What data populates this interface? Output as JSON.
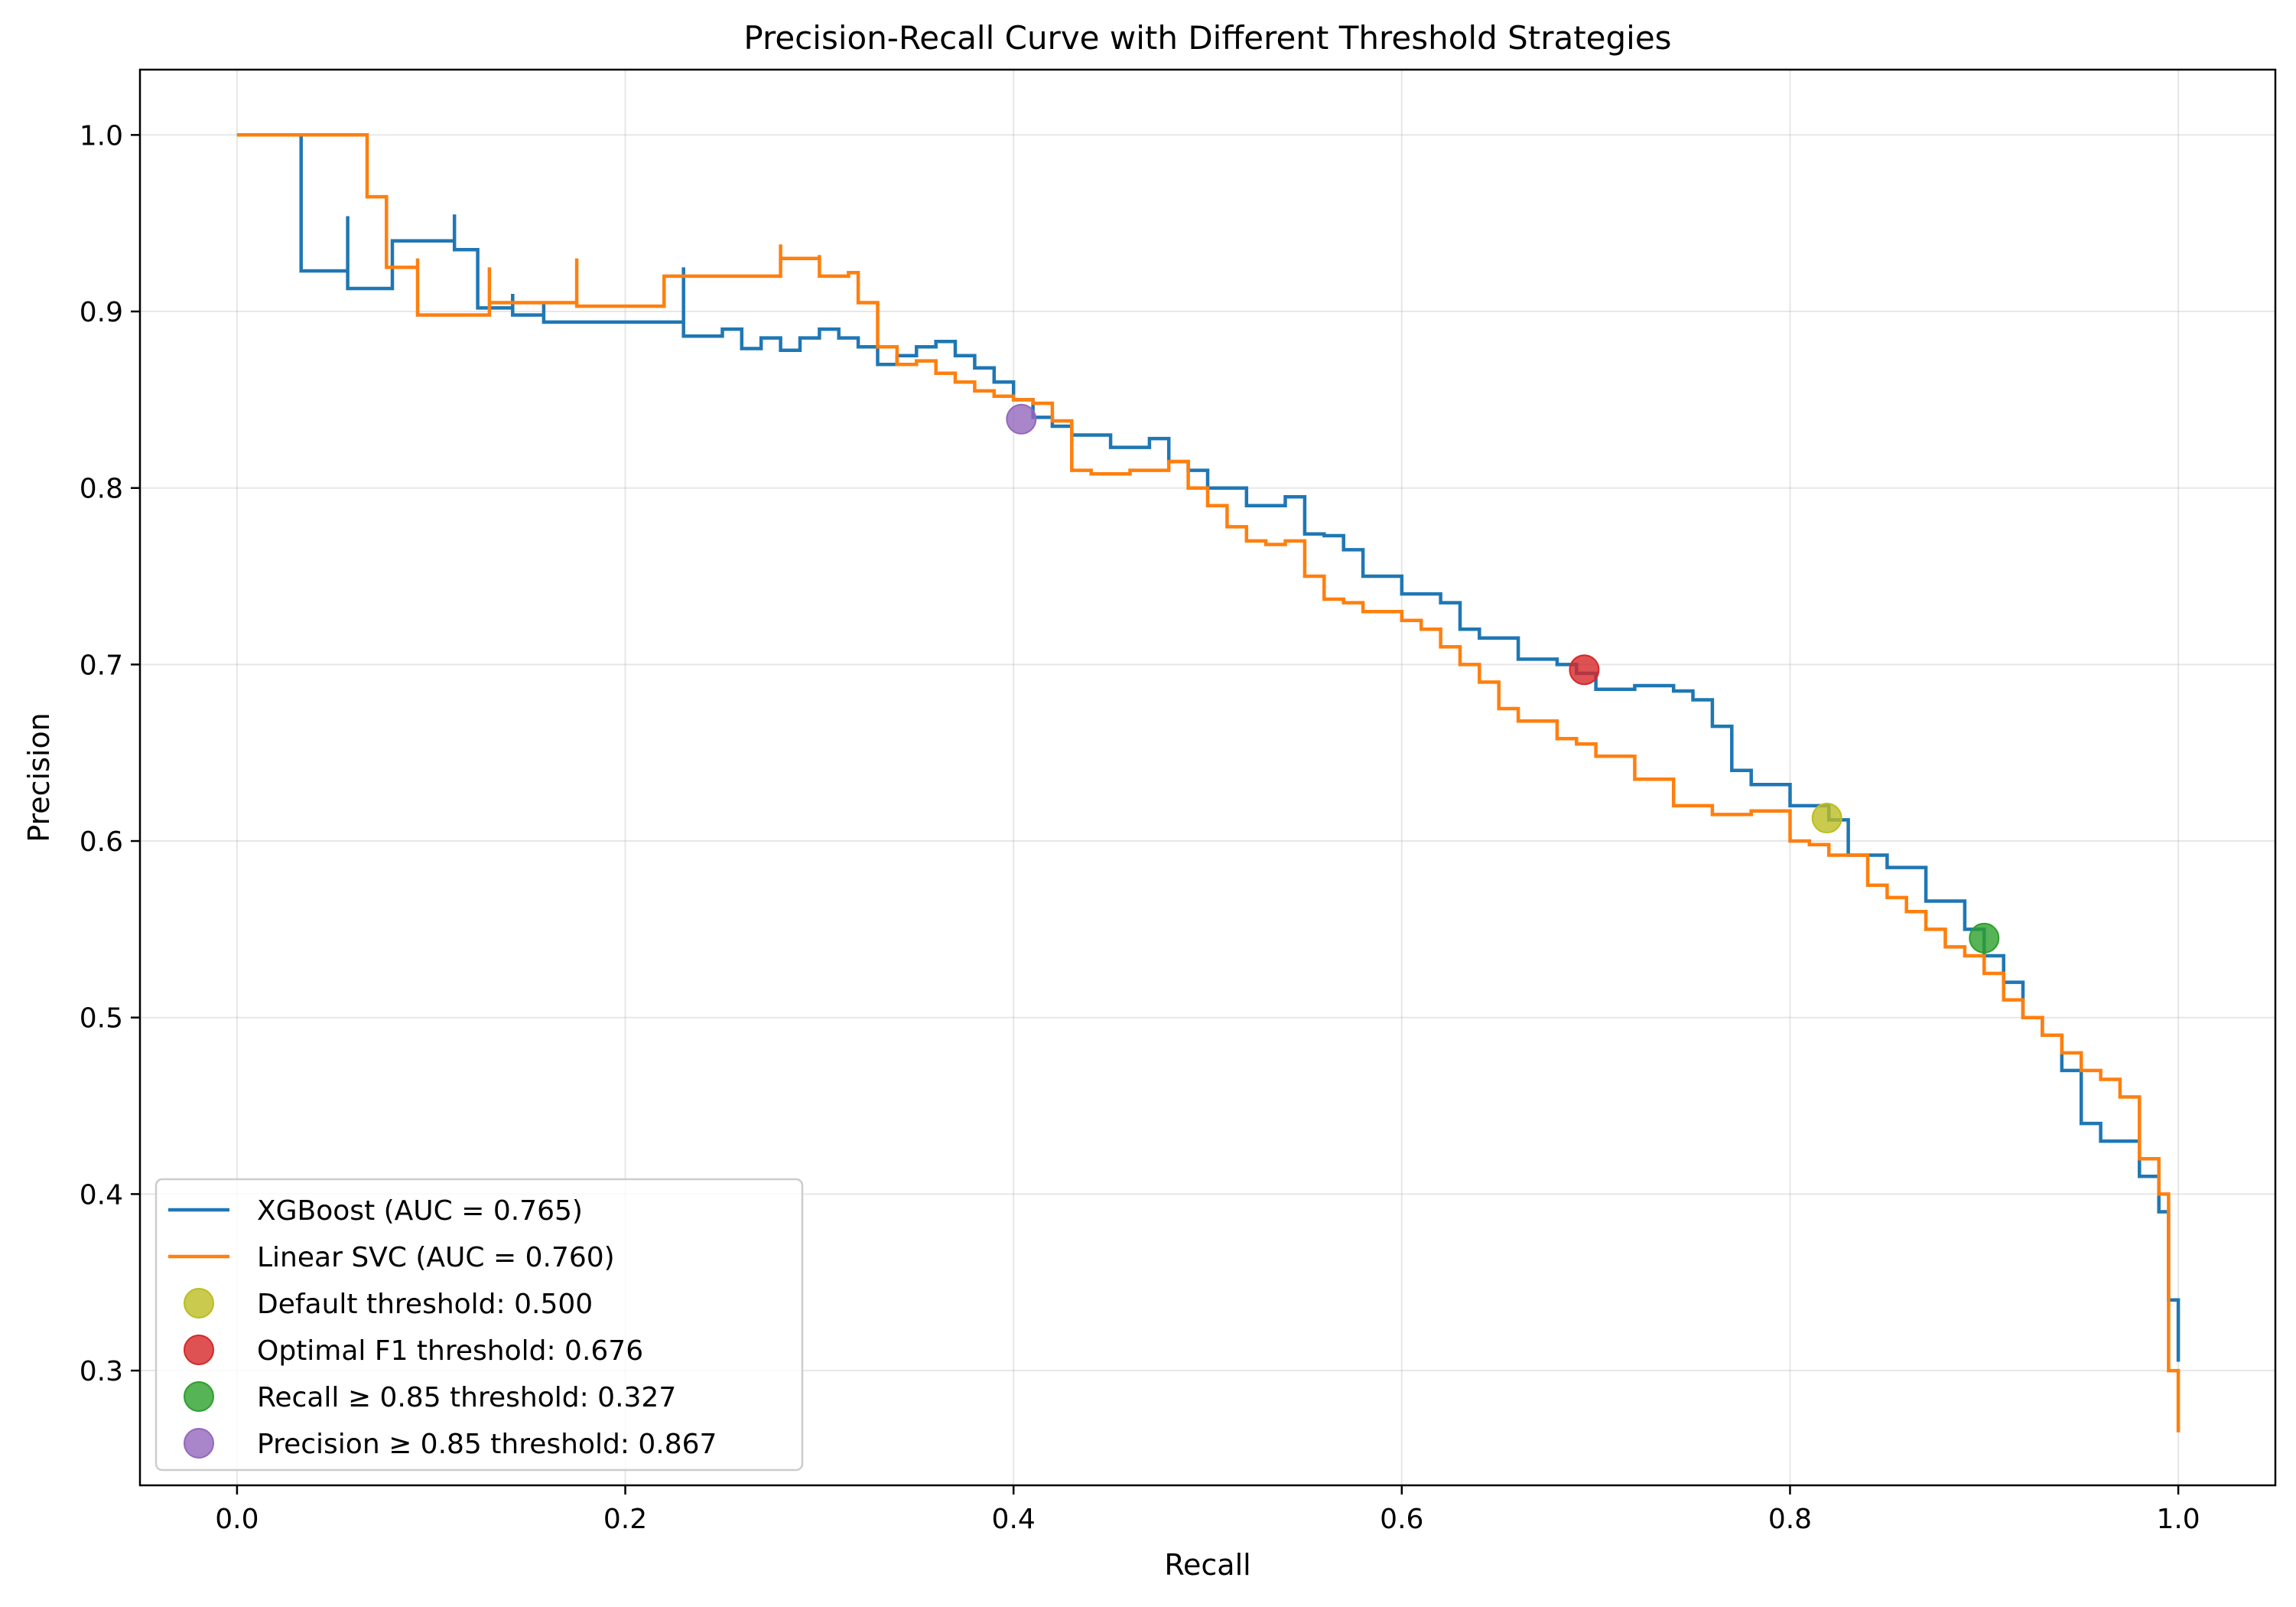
{
  "chart_data": {
    "type": "line",
    "title": "Precision-Recall Curve with Different Threshold Strategies",
    "xlabel": "Recall",
    "ylabel": "Precision",
    "xlim": [
      -0.05,
      1.05
    ],
    "ylim": [
      0.235,
      1.037
    ],
    "xticks": [
      0.0,
      0.2,
      0.4,
      0.6,
      0.8,
      1.0
    ],
    "xtick_labels": [
      "0.0",
      "0.2",
      "0.4",
      "0.6",
      "0.8",
      "1.0"
    ],
    "yticks": [
      0.3,
      0.4,
      0.5,
      0.6,
      0.7,
      0.8,
      0.9,
      1.0
    ],
    "ytick_labels": [
      "0.3",
      "0.4",
      "0.5",
      "0.6",
      "0.7",
      "0.8",
      "0.9",
      "1.0"
    ],
    "grid": true,
    "legend_position": "lower-left",
    "series": [
      {
        "name": "XGBoost (AUC = 0.765)",
        "color": "#1f77b4",
        "x": [
          0.0,
          0.033,
          0.033,
          0.057,
          0.057,
          0.08,
          0.112,
          0.112,
          0.124,
          0.124,
          0.142,
          0.142,
          0.158,
          0.158,
          0.23,
          0.23,
          0.25,
          0.26,
          0.27,
          0.28,
          0.29,
          0.3,
          0.31,
          0.32,
          0.33,
          0.34,
          0.35,
          0.36,
          0.37,
          0.38,
          0.39,
          0.4,
          0.41,
          0.42,
          0.43,
          0.45,
          0.47,
          0.48,
          0.49,
          0.5,
          0.52,
          0.54,
          0.55,
          0.56,
          0.57,
          0.58,
          0.6,
          0.62,
          0.63,
          0.64,
          0.66,
          0.68,
          0.69,
          0.7,
          0.72,
          0.74,
          0.75,
          0.76,
          0.77,
          0.78,
          0.8,
          0.82,
          0.83,
          0.85,
          0.87,
          0.89,
          0.9,
          0.91,
          0.92,
          0.93,
          0.94,
          0.95,
          0.96,
          0.97,
          0.98,
          0.99,
          0.995,
          1.0
        ],
        "y": [
          1.0,
          1.0,
          0.923,
          0.954,
          0.913,
          0.94,
          0.955,
          0.935,
          0.925,
          0.902,
          0.91,
          0.898,
          0.905,
          0.894,
          0.925,
          0.886,
          0.89,
          0.879,
          0.885,
          0.878,
          0.885,
          0.89,
          0.885,
          0.88,
          0.87,
          0.875,
          0.88,
          0.883,
          0.875,
          0.868,
          0.86,
          0.85,
          0.84,
          0.835,
          0.83,
          0.823,
          0.828,
          0.815,
          0.81,
          0.8,
          0.79,
          0.795,
          0.774,
          0.773,
          0.765,
          0.75,
          0.74,
          0.735,
          0.72,
          0.715,
          0.703,
          0.7,
          0.695,
          0.686,
          0.688,
          0.685,
          0.68,
          0.665,
          0.64,
          0.632,
          0.62,
          0.612,
          0.592,
          0.585,
          0.566,
          0.55,
          0.535,
          0.52,
          0.5,
          0.49,
          0.47,
          0.44,
          0.43,
          0.43,
          0.41,
          0.39,
          0.34,
          0.305
        ]
      },
      {
        "name": "Linear SVC (AUC = 0.760)",
        "color": "#ff7f0e",
        "x": [
          0.0,
          0.067,
          0.067,
          0.077,
          0.077,
          0.093,
          0.093,
          0.13,
          0.13,
          0.175,
          0.175,
          0.22,
          0.28,
          0.28,
          0.3,
          0.3,
          0.315,
          0.32,
          0.33,
          0.34,
          0.35,
          0.36,
          0.37,
          0.38,
          0.39,
          0.4,
          0.41,
          0.42,
          0.43,
          0.44,
          0.46,
          0.48,
          0.49,
          0.5,
          0.51,
          0.52,
          0.53,
          0.54,
          0.55,
          0.56,
          0.57,
          0.58,
          0.6,
          0.61,
          0.62,
          0.63,
          0.64,
          0.65,
          0.66,
          0.68,
          0.69,
          0.7,
          0.72,
          0.74,
          0.76,
          0.78,
          0.8,
          0.81,
          0.82,
          0.84,
          0.85,
          0.86,
          0.87,
          0.88,
          0.89,
          0.9,
          0.91,
          0.92,
          0.93,
          0.94,
          0.95,
          0.96,
          0.97,
          0.98,
          0.99,
          0.995,
          1.0
        ],
        "y": [
          1.0,
          1.0,
          0.965,
          0.962,
          0.925,
          0.93,
          0.898,
          0.925,
          0.905,
          0.93,
          0.903,
          0.92,
          0.938,
          0.93,
          0.932,
          0.92,
          0.922,
          0.905,
          0.88,
          0.87,
          0.872,
          0.865,
          0.86,
          0.855,
          0.852,
          0.85,
          0.848,
          0.838,
          0.81,
          0.808,
          0.81,
          0.815,
          0.8,
          0.79,
          0.778,
          0.77,
          0.768,
          0.77,
          0.75,
          0.737,
          0.735,
          0.73,
          0.725,
          0.72,
          0.71,
          0.7,
          0.69,
          0.675,
          0.668,
          0.658,
          0.655,
          0.648,
          0.635,
          0.62,
          0.615,
          0.617,
          0.6,
          0.598,
          0.592,
          0.575,
          0.568,
          0.56,
          0.55,
          0.54,
          0.535,
          0.525,
          0.51,
          0.5,
          0.49,
          0.48,
          0.47,
          0.465,
          0.455,
          0.42,
          0.4,
          0.3,
          0.265
        ]
      },
      {
        "name": "Default threshold: 0.500",
        "color": "#bcbd22",
        "x": [
          0.819
        ],
        "y": [
          0.613
        ]
      },
      {
        "name": "Optimal F1 threshold: 0.676",
        "color": "#d62728",
        "x": [
          0.694
        ],
        "y": [
          0.697
        ]
      },
      {
        "name": "Recall ≥ 0.85 threshold: 0.327",
        "color": "#2ca02c",
        "x": [
          0.9
        ],
        "y": [
          0.545
        ]
      },
      {
        "name": "Precision ≥ 0.85 threshold: 0.867",
        "color": "#9467bd",
        "x": [
          0.404
        ],
        "y": [
          0.839
        ]
      }
    ]
  }
}
